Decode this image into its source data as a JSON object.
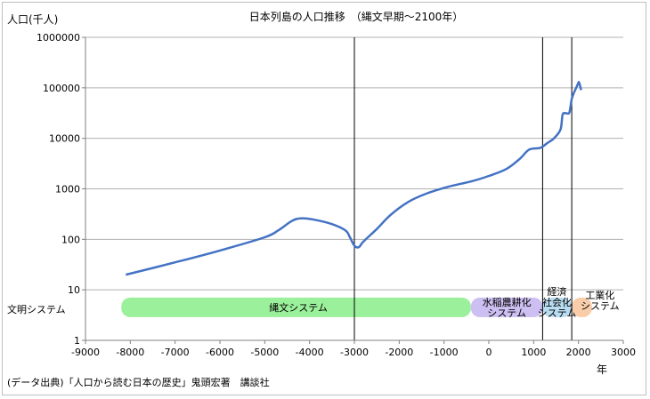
{
  "chart_data": {
    "type": "line",
    "title": "日本列島の人口推移　（縄文早期～2100年）",
    "ylabel": "人口(千人)",
    "xlabel": "年",
    "source_note": "(データ出典)「人口から読む日本の歴史」鬼頭宏著　講談社",
    "y_scale": "log",
    "ylim": [
      1,
      1000000
    ],
    "xlim": [
      -9000,
      3000
    ],
    "x_ticks": [
      "-9000",
      "-8000",
      "-7000",
      "-6000",
      "-5000",
      "-4000",
      "-3000",
      "-2000",
      "-1000",
      "0",
      "1000",
      "2000",
      "3000"
    ],
    "y_ticks": [
      "1",
      "10",
      "100",
      "1000",
      "10000",
      "100000",
      "1000000"
    ],
    "grid": "horizontal",
    "series": [
      {
        "color": "#4472c4",
        "points": [
          [
            -8100,
            20
          ],
          [
            -7000,
            35
          ],
          [
            -6000,
            60
          ],
          [
            -5000,
            110
          ],
          [
            -4700,
            150
          ],
          [
            -4400,
            230
          ],
          [
            -4200,
            260
          ],
          [
            -3900,
            245
          ],
          [
            -3500,
            200
          ],
          [
            -3200,
            150
          ],
          [
            -3100,
            110
          ],
          [
            -3000,
            75
          ],
          [
            -2900,
            70
          ],
          [
            -2800,
            90
          ],
          [
            -2500,
            160
          ],
          [
            -2200,
            300
          ],
          [
            -1800,
            550
          ],
          [
            -1400,
            800
          ],
          [
            -900,
            1100
          ],
          [
            -400,
            1400
          ],
          [
            0,
            1800
          ],
          [
            400,
            2500
          ],
          [
            700,
            4000
          ],
          [
            900,
            6000
          ],
          [
            1150,
            6500
          ],
          [
            1300,
            8000
          ],
          [
            1450,
            10000
          ],
          [
            1600,
            15000
          ],
          [
            1650,
            30000
          ],
          [
            1750,
            31000
          ],
          [
            1800,
            33000
          ],
          [
            1850,
            60000
          ],
          [
            1900,
            80000
          ],
          [
            1950,
            100000
          ],
          [
            2000,
            127000
          ],
          [
            2010,
            128000
          ],
          [
            2030,
            115000
          ],
          [
            2060,
            90000
          ]
        ]
      }
    ],
    "vertical_lines": [
      -3000,
      1200,
      1850
    ],
    "row_label": "文明システム",
    "systems": [
      {
        "name": "縄文システム",
        "start": -8200,
        "end": -400,
        "color": "#90ee90"
      },
      {
        "name": "水稲農耕化システム",
        "start": -400,
        "end": 1200,
        "color": "#c8b8f0"
      },
      {
        "name": "経済社会化システム",
        "start": 1200,
        "end": 1850,
        "color": "#b0d8f0"
      },
      {
        "name": "工業化システム",
        "start": 1850,
        "end": 2300,
        "color": "#f8c8a0"
      }
    ]
  }
}
